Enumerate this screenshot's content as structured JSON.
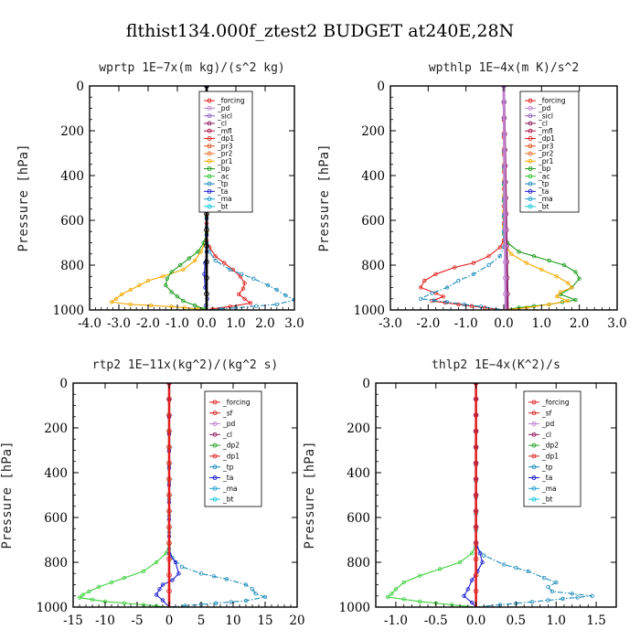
{
  "title": "flthist134.000f_ztest2  BUDGET at240E,28N",
  "chart_data": [
    {
      "type": "line",
      "title": "wprtp   1E−7x(m kg)/(s^2 kg)",
      "ylabel": "Pressure [hPa]",
      "xlim": [
        -4,
        3
      ],
      "ylim": [
        1000,
        0
      ],
      "xticks": [
        "-4.0",
        "-3.0",
        "-2.0",
        "-1.0",
        "0.0",
        "1.0",
        "2.0",
        "3.0"
      ],
      "yticks": [
        "0",
        "200",
        "400",
        "600",
        "800",
        "1000"
      ],
      "legend": [
        "_forcing",
        "_pd",
        "_sicl",
        "_cl",
        "_mfl",
        "_dp1",
        "_pr3",
        "_pr2",
        "_pr1",
        "_bp",
        "_ac",
        "_tp",
        "_ta",
        "_ma",
        "_bt"
      ],
      "series": [
        {
          "name": "_pr1",
          "color": "#f2a900",
          "points": [
            [
              0,
              0
            ],
            [
              0,
              650
            ],
            [
              -0.05,
              700
            ],
            [
              -0.2,
              740
            ],
            [
              -0.4,
              780
            ],
            [
              -0.8,
              820
            ],
            [
              -1.5,
              850
            ],
            [
              -2.0,
              870
            ],
            [
              -2.3,
              890
            ],
            [
              -2.6,
              910
            ],
            [
              -2.9,
              930
            ],
            [
              -3.1,
              950
            ],
            [
              -3.25,
              965
            ],
            [
              -2.6,
              975
            ],
            [
              -1.2,
              985
            ],
            [
              -0.3,
              995
            ],
            [
              0,
              1000
            ]
          ]
        },
        {
          "name": "_bp",
          "color": "#1a9a1a",
          "points": [
            [
              0,
              0
            ],
            [
              0,
              660
            ],
            [
              -0.1,
              700
            ],
            [
              -0.3,
              740
            ],
            [
              -0.6,
              770
            ],
            [
              -0.9,
              800
            ],
            [
              -1.2,
              830
            ],
            [
              -1.35,
              860
            ],
            [
              -1.4,
              890
            ],
            [
              -1.2,
              920
            ],
            [
              -1.0,
              940
            ],
            [
              -0.8,
              960
            ],
            [
              -0.4,
              980
            ],
            [
              -0.1,
              995
            ],
            [
              0,
              1000
            ]
          ]
        },
        {
          "name": "_pr3",
          "color": "#e02020",
          "points": [
            [
              0,
              0
            ],
            [
              0,
              690
            ],
            [
              0.1,
              720
            ],
            [
              0.3,
              760
            ],
            [
              0.6,
              790
            ],
            [
              0.9,
              820
            ],
            [
              1.15,
              850
            ],
            [
              1.3,
              880
            ],
            [
              1.25,
              905
            ],
            [
              1.1,
              930
            ],
            [
              1.3,
              950
            ],
            [
              1.5,
              970
            ],
            [
              0.8,
              985
            ],
            [
              0.2,
              995
            ],
            [
              0,
              1000
            ]
          ]
        },
        {
          "name": "_tp",
          "color": "#1a8ab8",
          "points": [
            [
              0,
              0
            ],
            [
              0,
              700
            ],
            [
              0.1,
              740
            ],
            [
              0.3,
              780
            ],
            [
              0.8,
              820
            ],
            [
              1.6,
              860
            ],
            [
              2.1,
              890
            ],
            [
              2.4,
              910
            ],
            [
              2.7,
              935
            ],
            [
              3.0,
              955
            ],
            [
              2.4,
              975
            ],
            [
              1.0,
              990
            ],
            [
              0,
              1000
            ]
          ]
        },
        {
          "name": "_ta",
          "color": "#1a1ad0",
          "points": [
            [
              0,
              0
            ],
            [
              0,
              740
            ],
            [
              -0.05,
              790
            ],
            [
              -0.08,
              840
            ],
            [
              -0.05,
              900
            ],
            [
              0.02,
              950
            ],
            [
              -0.02,
              980
            ],
            [
              0,
              1000
            ]
          ]
        },
        {
          "name": "_forcing",
          "color": "#000000",
          "points": [
            [
              0,
              0
            ],
            [
              0,
              1000
            ]
          ]
        }
      ]
    },
    {
      "type": "line",
      "title": "wpthlp   1E−4x(m K)/s^2",
      "ylabel": "Pressure [hPa]",
      "xlim": [
        -3,
        3
      ],
      "ylim": [
        1000,
        0
      ],
      "xticks": [
        "-3.0",
        "-2.0",
        "-1.0",
        "0.0",
        "1.0",
        "2.0",
        "3.0"
      ],
      "yticks": [
        "0",
        "200",
        "400",
        "600",
        "800",
        "1000"
      ],
      "legend": [
        "_forcing",
        "_pd",
        "_sicl",
        "_cl",
        "_mfl",
        "_dp1",
        "_pr3",
        "_pr2",
        "_pr1",
        "_bp",
        "_ac",
        "_tp",
        "_ta",
        "_ma",
        "_bt"
      ],
      "series": [
        {
          "name": "_bp",
          "color": "#1a9a1a",
          "points": [
            [
              0,
              0
            ],
            [
              0,
              660
            ],
            [
              0.1,
              700
            ],
            [
              0.4,
              740
            ],
            [
              0.8,
              760
            ],
            [
              1.2,
              780
            ],
            [
              1.6,
              800
            ],
            [
              1.9,
              830
            ],
            [
              2.0,
              860
            ],
            [
              1.8,
              900
            ],
            [
              1.5,
              930
            ],
            [
              1.9,
              955
            ],
            [
              1.2,
              975
            ],
            [
              0.4,
              990
            ],
            [
              0,
              1000
            ]
          ]
        },
        {
          "name": "_pr1",
          "color": "#f2a900",
          "points": [
            [
              0,
              0
            ],
            [
              0,
              700
            ],
            [
              0.2,
              750
            ],
            [
              0.6,
              790
            ],
            [
              1.0,
              820
            ],
            [
              1.4,
              850
            ],
            [
              1.7,
              880
            ],
            [
              1.8,
              900
            ],
            [
              1.5,
              920
            ],
            [
              1.4,
              940
            ],
            [
              1.7,
              960
            ],
            [
              1.2,
              975
            ],
            [
              0.6,
              990
            ],
            [
              0,
              1000
            ]
          ]
        },
        {
          "name": "_dp1",
          "color": "#e02020",
          "points": [
            [
              0,
              0
            ],
            [
              0,
              690
            ],
            [
              -0.1,
              720
            ],
            [
              -0.4,
              760
            ],
            [
              -0.8,
              790
            ],
            [
              -1.3,
              810
            ],
            [
              -1.8,
              840
            ],
            [
              -2.1,
              870
            ],
            [
              -2.2,
              900
            ],
            [
              -1.8,
              925
            ],
            [
              -1.6,
              940
            ],
            [
              -1.9,
              960
            ],
            [
              -1.2,
              975
            ],
            [
              -0.5,
              990
            ],
            [
              0,
              1000
            ]
          ]
        },
        {
          "name": "_tp",
          "color": "#1a8ab8",
          "points": [
            [
              0,
              0
            ],
            [
              0,
              720
            ],
            [
              -0.1,
              760
            ],
            [
              -0.4,
              800
            ],
            [
              -0.8,
              840
            ],
            [
              -1.2,
              870
            ],
            [
              -1.5,
              900
            ],
            [
              -1.9,
              925
            ],
            [
              -2.2,
              950
            ],
            [
              -1.5,
              965
            ],
            [
              -0.6,
              985
            ],
            [
              0,
              1000
            ]
          ]
        },
        {
          "name": "_cl",
          "color": "#8a1a5a",
          "points": [
            [
              0,
              0
            ],
            [
              0.1,
              1000
            ]
          ]
        },
        {
          "name": "_pd",
          "color": "#c080d0",
          "points": [
            [
              0,
              0
            ],
            [
              0.05,
              1000
            ]
          ]
        }
      ]
    },
    {
      "type": "line",
      "title": "rtp2   1E−11x(kg^2)/(kg^2 s)",
      "ylabel": "Pressure [hPa]",
      "xlim": [
        -15,
        20
      ],
      "ylim": [
        1000,
        0
      ],
      "xticks": [
        "-15",
        "-10",
        "-5",
        "0",
        "5",
        "10",
        "15",
        "20"
      ],
      "yticks": [
        "0",
        "200",
        "400",
        "600",
        "800",
        "1000"
      ],
      "legend": [
        "_forcing",
        "_sf",
        "_pd",
        "_cl",
        "_dp2",
        "_dp1",
        "_tp",
        "_ta",
        "_ma",
        "_bt"
      ],
      "series": [
        {
          "name": "_dp1",
          "color": "#3cd03c",
          "points": [
            [
              0,
              0
            ],
            [
              0,
              720
            ],
            [
              -0.5,
              760
            ],
            [
              -2,
              800
            ],
            [
              -4,
              840
            ],
            [
              -7,
              870
            ],
            [
              -9,
              890
            ],
            [
              -11,
              910
            ],
            [
              -12.5,
              930
            ],
            [
              -13.5,
              945
            ],
            [
              -14,
              958
            ],
            [
              -10,
              975
            ],
            [
              -4,
              990
            ],
            [
              0,
              1000
            ]
          ]
        },
        {
          "name": "_tp",
          "color": "#1a8ab8",
          "points": [
            [
              0,
              0
            ],
            [
              0,
              740
            ],
            [
              0.5,
              780
            ],
            [
              2,
              820
            ],
            [
              5,
              850
            ],
            [
              9,
              875
            ],
            [
              12,
              900
            ],
            [
              13,
              920
            ],
            [
              13.5,
              940
            ],
            [
              15,
              955
            ],
            [
              12,
              972
            ],
            [
              5,
              988
            ],
            [
              0,
              1000
            ]
          ]
        },
        {
          "name": "_ta",
          "color": "#1a1ad0",
          "points": [
            [
              0,
              0
            ],
            [
              0,
              760
            ],
            [
              1,
              800
            ],
            [
              1.5,
              850
            ],
            [
              0.5,
              880
            ],
            [
              -1,
              900
            ],
            [
              -1.5,
              920
            ],
            [
              -2,
              945
            ],
            [
              -1,
              970
            ],
            [
              0,
              1000
            ]
          ]
        },
        {
          "name": "_forcing",
          "color": "#e02020",
          "points": [
            [
              0,
              0
            ],
            [
              0,
              1000
            ]
          ]
        }
      ]
    },
    {
      "type": "line",
      "title": "thlp2   1E−4x(K^2)/s",
      "ylabel": "Pressure [hPa]",
      "xlim": [
        -1.25,
        1.75
      ],
      "ylim": [
        1000,
        0
      ],
      "xticks": [
        "-1.0",
        "-0.5",
        "0.0",
        "0.5",
        "1.0",
        "1.5"
      ],
      "yticks": [
        "0",
        "200",
        "400",
        "600",
        "800",
        "1000"
      ],
      "legend": [
        "_forcing",
        "_sf",
        "_pd",
        "_cl",
        "_dp2",
        "_dp1",
        "_tp",
        "_ta",
        "_ma",
        "_bt"
      ],
      "series": [
        {
          "name": "_dp1",
          "color": "#3cd03c",
          "points": [
            [
              0,
              0
            ],
            [
              0,
              720
            ],
            [
              -0.05,
              760
            ],
            [
              -0.2,
              800
            ],
            [
              -0.45,
              830
            ],
            [
              -0.7,
              860
            ],
            [
              -0.9,
              890
            ],
            [
              -1.0,
              920
            ],
            [
              -1.05,
              940
            ],
            [
              -1.1,
              955
            ],
            [
              -0.7,
              975
            ],
            [
              -0.3,
              990
            ],
            [
              0,
              1000
            ]
          ]
        },
        {
          "name": "_tp",
          "color": "#1a8ab8",
          "points": [
            [
              0,
              0
            ],
            [
              0,
              730
            ],
            [
              0.1,
              770
            ],
            [
              0.35,
              810
            ],
            [
              0.65,
              840
            ],
            [
              0.85,
              870
            ],
            [
              1.0,
              890
            ],
            [
              0.9,
              910
            ],
            [
              0.95,
              930
            ],
            [
              1.45,
              950
            ],
            [
              0.9,
              970
            ],
            [
              0.3,
              990
            ],
            [
              0,
              1000
            ]
          ]
        },
        {
          "name": "_ta",
          "color": "#1a1ad0",
          "points": [
            [
              0,
              0
            ],
            [
              0,
              710
            ],
            [
              0.05,
              760
            ],
            [
              0.08,
              800
            ],
            [
              0.02,
              840
            ],
            [
              -0.05,
              880
            ],
            [
              -0.1,
              920
            ],
            [
              -0.15,
              950
            ],
            [
              -0.05,
              980
            ],
            [
              0,
              1000
            ]
          ]
        },
        {
          "name": "_forcing",
          "color": "#e02020",
          "points": [
            [
              0,
              0
            ],
            [
              0,
              1000
            ]
          ]
        }
      ]
    }
  ]
}
